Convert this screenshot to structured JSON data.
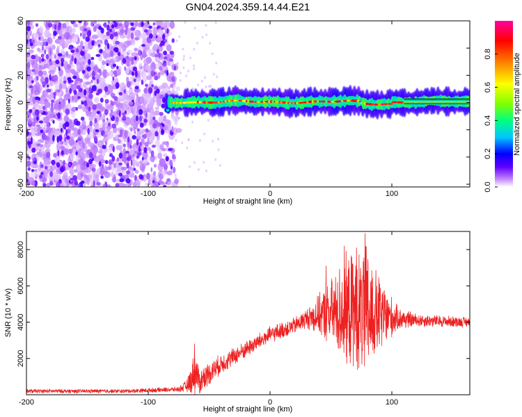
{
  "figure": {
    "title": "GN04.2024.359.14.44.E21"
  },
  "chart_data": [
    {
      "type": "heatmap",
      "title": "GN04.2024.359.14.44.E21",
      "xlabel": "Height of straight line (km)",
      "ylabel": "Frequency (Hz)",
      "xlim": [
        -200,
        164
      ],
      "ylim": [
        -62,
        60
      ],
      "xticks": [
        -200,
        -100,
        0,
        100
      ],
      "yticks": [
        60,
        40,
        20,
        0,
        -20,
        -40,
        -60
      ],
      "colorbar": {
        "label": "Normalized spectral amplitude",
        "range": [
          0,
          1
        ],
        "ticks": [
          0.0,
          0.2,
          0.4,
          0.6,
          0.8
        ],
        "colors": [
          "#ffffff",
          "#c080ff",
          "#6000ff",
          "#0000ff",
          "#00c8ff",
          "#00ff80",
          "#80ff00",
          "#ffff00",
          "#ff8000",
          "#ff0000",
          "#ff00a0"
        ]
      },
      "noise_region": {
        "x": [
          -200,
          -78
        ],
        "y": [
          -62,
          60
        ],
        "level": "low (0.0-0.3)"
      },
      "signal_band": {
        "x": [
          -85,
          164
        ],
        "center_hz": 0.5,
        "width_hz": 5,
        "peak_level": 0.95
      }
    },
    {
      "type": "line",
      "xlabel": "Height of straight line (km)",
      "ylabel": "SNR (10 * v/v)",
      "xlim": [
        -200,
        164
      ],
      "ylim": [
        0,
        9000
      ],
      "xticks": [
        -200,
        -100,
        0,
        100
      ],
      "yticks": [
        2000,
        4000,
        6000,
        8000
      ],
      "color": "#ff0000",
      "envelope": {
        "x": [
          -200,
          -120,
          -75,
          -68,
          -64,
          -62,
          -58,
          -50,
          -40,
          -20,
          0,
          20,
          30,
          40,
          50,
          60,
          65,
          70,
          75,
          78,
          85,
          95,
          105,
          120,
          164
        ],
        "base": [
          200,
          200,
          300,
          500,
          900,
          1500,
          700,
          1200,
          1700,
          2500,
          3300,
          3800,
          4200,
          4400,
          4500,
          4600,
          4600,
          4600,
          4500,
          4500,
          4400,
          4300,
          4200,
          4100,
          4000
        ],
        "noise": [
          120,
          120,
          150,
          400,
          1000,
          1200,
          800,
          700,
          600,
          500,
          500,
          500,
          600,
          1200,
          2000,
          3200,
          3500,
          3500,
          3800,
          4300,
          3000,
          1800,
          700,
          400,
          300
        ]
      },
      "peaks": [
        {
          "x": 78,
          "y": 8900
        },
        {
          "x": 61,
          "y": 8200
        },
        {
          "x": 71,
          "y": 8100
        },
        {
          "x": 46,
          "y": 7100
        },
        {
          "x": -62,
          "y": 2800
        }
      ]
    }
  ]
}
